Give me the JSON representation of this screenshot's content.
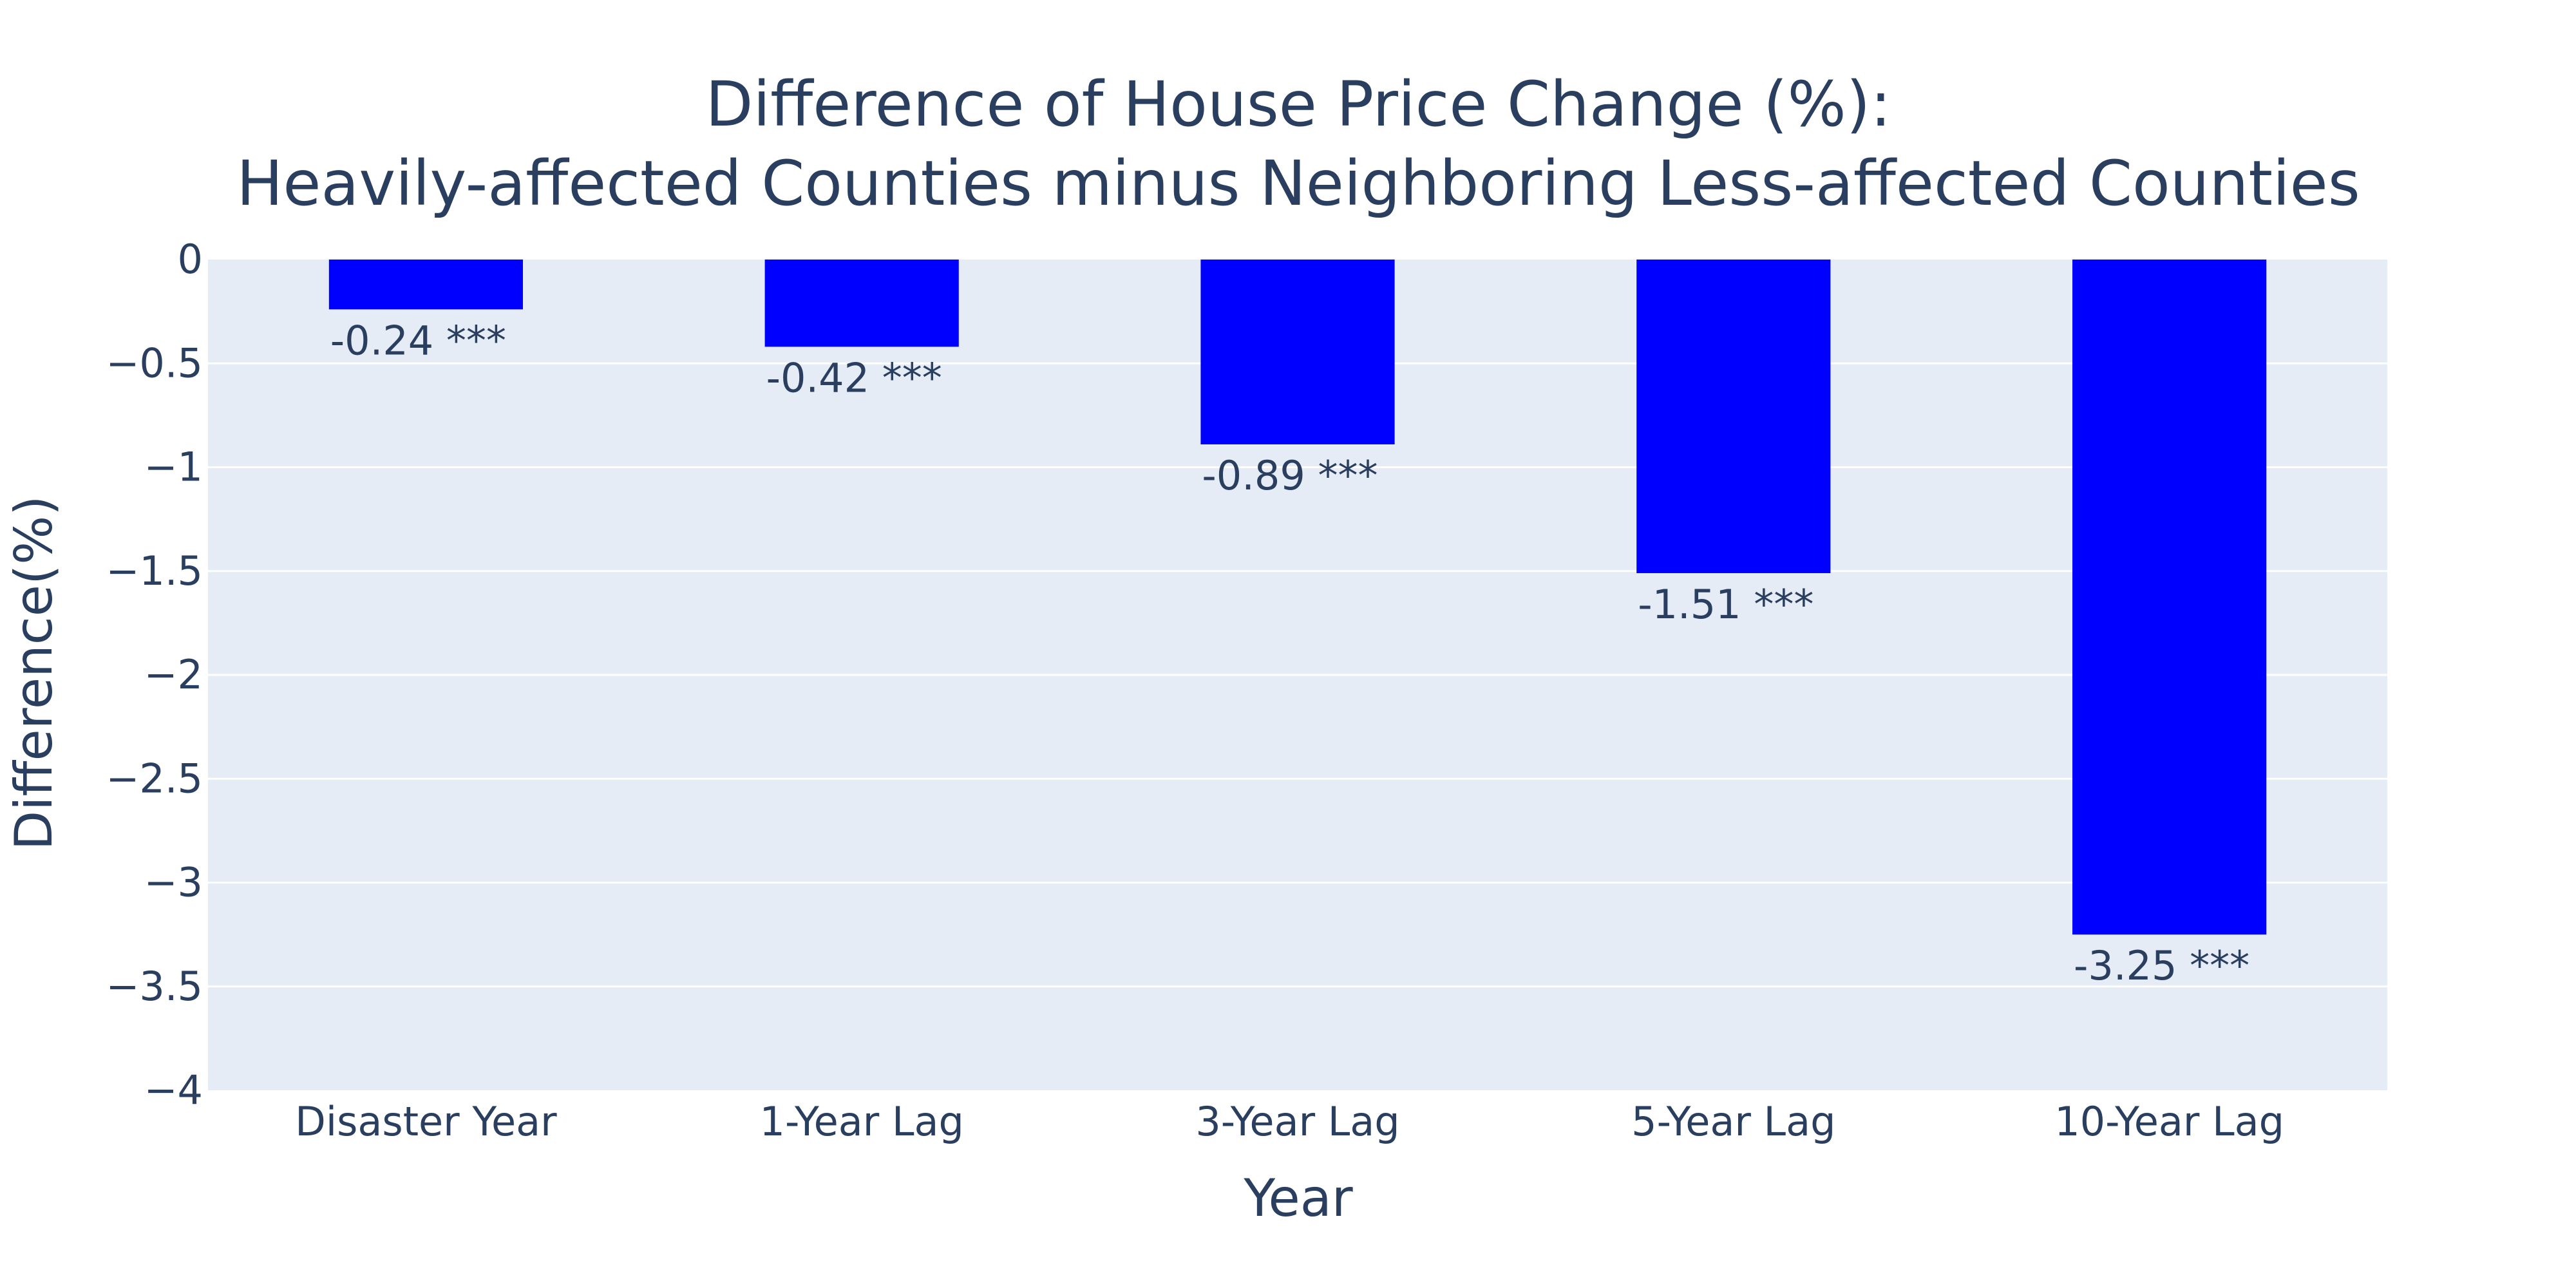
{
  "chart_data": {
    "type": "bar",
    "title": "Difference of House Price Change (%):",
    "subtitle": "Heavily-affected Counties minus Neighboring Less-affected Counties",
    "xlabel": "Year",
    "ylabel": "Difference(%)",
    "categories": [
      "Disaster Year",
      "1-Year Lag",
      "3-Year Lag",
      "5-Year Lag",
      "10-Year Lag"
    ],
    "values": [
      -0.24,
      -0.42,
      -0.89,
      -1.51,
      -3.25
    ],
    "data_labels": [
      "-0.24 ***",
      "-0.42 ***",
      "-0.89 ***",
      "-1.51 ***",
      "-3.25 ***"
    ],
    "ylim": [
      -4,
      0
    ],
    "yticks": [
      0,
      -0.5,
      -1,
      -1.5,
      -2,
      -2.5,
      -3,
      -3.5,
      -4
    ],
    "ytick_labels": [
      "0",
      "−0.5",
      "−1",
      "−1.5",
      "−2",
      "−2.5",
      "−3",
      "−3.5",
      "−4"
    ],
    "grid": true,
    "legend": "none",
    "colors": {
      "bar": "#0000ff",
      "plot_background": "#e5ecf6",
      "gridline": "#ffffff",
      "text": "#2a3f5f"
    }
  }
}
